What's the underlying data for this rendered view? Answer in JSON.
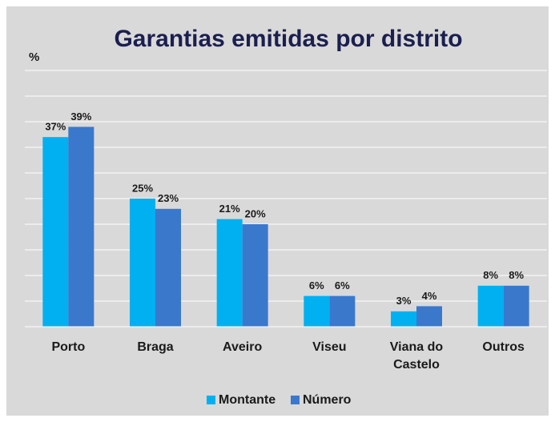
{
  "chart_data": {
    "type": "bar",
    "title": "Garantias emitidas por distrito",
    "y_label": "%",
    "categories": [
      "Porto",
      "Braga",
      "Aveiro",
      "Viseu",
      "Viana do Castelo",
      "Outros"
    ],
    "series": [
      {
        "name": "Montante",
        "color": "#00b0f0",
        "values": [
          37,
          25,
          21,
          6,
          3,
          8
        ],
        "value_labels": [
          "37%",
          "25%",
          "21%",
          "6%",
          "3%",
          "8%"
        ]
      },
      {
        "name": "Número",
        "color": "#3a78cc",
        "values": [
          39,
          23,
          20,
          6,
          4,
          8
        ],
        "value_labels": [
          "39%",
          "23%",
          "20%",
          "6%",
          "4%",
          "8%"
        ]
      }
    ],
    "ylim": [
      0,
      50
    ],
    "yticks": [
      0,
      5,
      10,
      15,
      20,
      25,
      30,
      35,
      40,
      45,
      50
    ],
    "grid": true,
    "legend": "bottom"
  }
}
